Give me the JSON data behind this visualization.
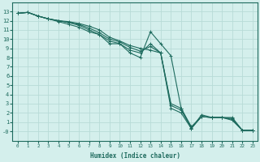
{
  "xlabel": "Humidex (Indice chaleur)",
  "xlim": [
    -0.5,
    23.5
  ],
  "ylim": [
    -1,
    14
  ],
  "xticks": [
    0,
    1,
    2,
    3,
    4,
    5,
    6,
    7,
    8,
    9,
    10,
    11,
    12,
    13,
    14,
    15,
    16,
    17,
    18,
    19,
    20,
    21,
    22,
    23
  ],
  "yticks": [
    0,
    1,
    2,
    3,
    4,
    5,
    6,
    7,
    8,
    9,
    10,
    11,
    12,
    13
  ],
  "ytick_labels": [
    "-0",
    "1",
    "2",
    "3",
    "4",
    "5",
    "6",
    "7",
    "8",
    "9",
    "10",
    "11",
    "12",
    "13"
  ],
  "bg_color": "#d4efec",
  "grid_color": "#b8dbd7",
  "line_color": "#1e6b5e",
  "line1": {
    "x": [
      0,
      1,
      2,
      3,
      4,
      5,
      6,
      7,
      8,
      9,
      10,
      11,
      12,
      13,
      14,
      15,
      16,
      17,
      18,
      19,
      20,
      21,
      22,
      23
    ],
    "y": [
      12.8,
      12.9,
      12.5,
      12.2,
      11.9,
      11.6,
      11.3,
      10.8,
      10.5,
      9.5,
      9.5,
      8.5,
      8.0,
      10.8,
      9.5,
      8.2,
      2.5,
      0.3,
      1.8,
      1.5,
      1.5,
      1.5,
      0.1,
      0.1
    ]
  },
  "line2": {
    "x": [
      0,
      1,
      2,
      3,
      4,
      5,
      6,
      7,
      8,
      9,
      10,
      11,
      12,
      13,
      14,
      15,
      16,
      17,
      18,
      19,
      20,
      21,
      22,
      23
    ],
    "y": [
      12.8,
      12.9,
      12.5,
      12.2,
      12.0,
      11.8,
      11.5,
      11.0,
      10.5,
      9.8,
      9.5,
      8.8,
      8.5,
      9.5,
      8.5,
      2.5,
      2.0,
      0.3,
      1.6,
      1.5,
      1.5,
      1.4,
      0.1,
      0.1
    ]
  },
  "line3": {
    "x": [
      0,
      1,
      2,
      3,
      4,
      5,
      6,
      7,
      8,
      9,
      10,
      11,
      12,
      13,
      14,
      15,
      16,
      17,
      18,
      19,
      20,
      21,
      22,
      23
    ],
    "y": [
      12.8,
      12.9,
      12.5,
      12.2,
      12.0,
      11.8,
      11.6,
      11.2,
      10.7,
      10.0,
      9.7,
      9.1,
      8.7,
      9.2,
      8.5,
      2.8,
      2.3,
      0.4,
      1.6,
      1.5,
      1.5,
      1.3,
      0.1,
      0.1
    ]
  },
  "line4": {
    "x": [
      0,
      1,
      2,
      3,
      4,
      5,
      6,
      7,
      8,
      9,
      10,
      11,
      12,
      13,
      14,
      15,
      16,
      17,
      18,
      19,
      20,
      21,
      22,
      23
    ],
    "y": [
      12.8,
      12.9,
      12.5,
      12.2,
      12.0,
      11.9,
      11.7,
      11.4,
      11.0,
      10.2,
      9.8,
      9.3,
      9.0,
      8.8,
      8.5,
      3.0,
      2.5,
      0.5,
      1.6,
      1.5,
      1.5,
      1.2,
      0.1,
      0.1
    ]
  }
}
